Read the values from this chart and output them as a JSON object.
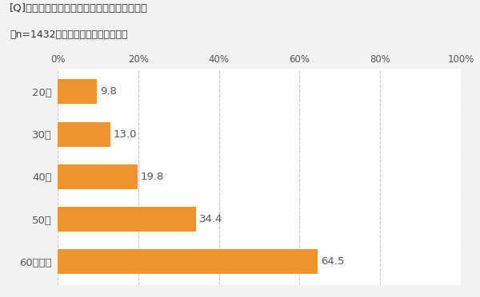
{
  "title_line1": "[Q]若いころに比べて、身長が縮みましたか。",
  "title_line2": "（n=1432、はいと答えた人の割合）",
  "categories": [
    "20代",
    "30代",
    "40代",
    "50代",
    "60代以上"
  ],
  "values": [
    9.8,
    13.0,
    19.8,
    34.4,
    64.5
  ],
  "bar_color": "#F0922D",
  "background_color": "#F2F2F2",
  "plot_bg_color": "#FFFFFF",
  "xlim": [
    0,
    100
  ],
  "xticks": [
    0,
    20,
    40,
    60,
    80,
    100
  ],
  "xtick_labels": [
    "0%",
    "20%",
    "40%",
    "60%",
    "80%",
    "100%"
  ],
  "grid_color": "#C8C8C8",
  "text_color": "#555555",
  "title_color": "#333333",
  "label_fontsize": 9.5,
  "tick_fontsize": 8.5,
  "value_fontsize": 9.5,
  "title_fontsize": 9.5,
  "bar_height": 0.58
}
